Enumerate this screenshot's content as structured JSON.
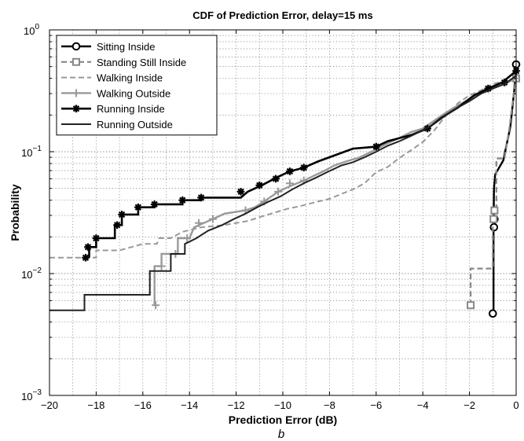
{
  "chart_data": {
    "type": "line",
    "title": "CDF of Prediction Error, delay=15 ms",
    "subtitle": "b",
    "xlabel": "Prediction Error (dB)",
    "ylabel": "Probability",
    "xlim": [
      -20,
      0
    ],
    "ylim": [
      0.001,
      1
    ],
    "y_scale": "log",
    "grid": true,
    "legend_position": "top-left",
    "x_ticks": [
      -20,
      -18,
      -16,
      -14,
      -12,
      -10,
      -8,
      -6,
      -4,
      -2,
      0
    ],
    "x_tick_labels": [
      "−20",
      "−18",
      "−16",
      "−14",
      "−12",
      "−10",
      "−8",
      "−6",
      "−4",
      "−2",
      "0"
    ],
    "y_ticks": [
      0.001,
      0.01,
      0.1,
      1
    ],
    "y_tick_labels": [
      {
        "base": "10",
        "exp": "−3"
      },
      {
        "base": "10",
        "exp": "−2"
      },
      {
        "base": "10",
        "exp": "−1"
      },
      {
        "base": "10",
        "exp": "0"
      }
    ],
    "series": [
      {
        "name": "Sitting Inside",
        "color": "#000000",
        "style": "solid",
        "width": 2.4,
        "marker": "circle",
        "points": [
          [
            -1.0,
            0.0048
          ],
          [
            -0.97,
            0.0048
          ],
          [
            -0.97,
            0.024
          ],
          [
            -0.95,
            0.05
          ],
          [
            -0.9,
            0.065
          ],
          [
            -0.55,
            0.085
          ],
          [
            -0.25,
            0.16
          ],
          [
            -0.08,
            0.32
          ],
          [
            0,
            0.52
          ]
        ],
        "marker_points": [
          [
            -1.0,
            0.0047
          ],
          [
            -0.95,
            0.024
          ],
          [
            -0.93,
            0.028
          ],
          [
            0,
            0.52
          ]
        ]
      },
      {
        "name": "Standing Still Inside",
        "color": "#888888",
        "style": "dashed",
        "width": 2.2,
        "marker": "square",
        "points": [
          [
            -1.95,
            0.0055
          ],
          [
            -1.95,
            0.011
          ],
          [
            -1.0,
            0.011
          ],
          [
            -1.0,
            0.033
          ],
          [
            -0.85,
            0.033
          ],
          [
            -0.85,
            0.088
          ],
          [
            -0.5,
            0.088
          ],
          [
            -0.3,
            0.15
          ],
          [
            -0.1,
            0.3
          ],
          [
            0,
            0.4
          ]
        ],
        "marker_points": [
          [
            -1.95,
            0.0055
          ],
          [
            -0.97,
            0.028
          ],
          [
            -0.93,
            0.033
          ],
          [
            0,
            0.4
          ]
        ]
      },
      {
        "name": "Walking Inside",
        "color": "#999999",
        "style": "dashed",
        "width": 2.0,
        "marker": "none",
        "points": [
          [
            -20,
            0.0135
          ],
          [
            -18,
            0.0135
          ],
          [
            -18,
            0.0155
          ],
          [
            -17,
            0.0155
          ],
          [
            -16,
            0.0175
          ],
          [
            -15.4,
            0.0175
          ],
          [
            -15.3,
            0.0195
          ],
          [
            -14.8,
            0.0195
          ],
          [
            -14.3,
            0.022
          ],
          [
            -13.5,
            0.024
          ],
          [
            -12.5,
            0.025
          ],
          [
            -11.5,
            0.027
          ],
          [
            -11,
            0.029
          ],
          [
            -10.5,
            0.031
          ],
          [
            -9.8,
            0.034
          ],
          [
            -9.2,
            0.036
          ],
          [
            -8.5,
            0.039
          ],
          [
            -8,
            0.041
          ],
          [
            -7.5,
            0.045
          ],
          [
            -7,
            0.049
          ],
          [
            -6.5,
            0.055
          ],
          [
            -6,
            0.068
          ],
          [
            -5.5,
            0.075
          ],
          [
            -5,
            0.089
          ],
          [
            -4.5,
            0.103
          ],
          [
            -4,
            0.12
          ],
          [
            -3.5,
            0.15
          ],
          [
            -3,
            0.2
          ],
          [
            -2.5,
            0.25
          ],
          [
            -2,
            0.29
          ],
          [
            -1.5,
            0.32
          ],
          [
            -1,
            0.36
          ],
          [
            -0.5,
            0.38
          ],
          [
            0,
            0.4
          ]
        ],
        "marker_points": []
      },
      {
        "name": "Walking Outside",
        "color": "#999999",
        "style": "solid",
        "width": 2.4,
        "marker": "plus",
        "points": [
          [
            -15.5,
            0.0055
          ],
          [
            -15.5,
            0.0115
          ],
          [
            -15.2,
            0.0115
          ],
          [
            -15.2,
            0.0145
          ],
          [
            -14.5,
            0.0145
          ],
          [
            -14.5,
            0.0195
          ],
          [
            -14,
            0.0195
          ],
          [
            -13.8,
            0.024
          ],
          [
            -13,
            0.028
          ],
          [
            -12.5,
            0.031
          ],
          [
            -11.6,
            0.033
          ],
          [
            -11.2,
            0.035
          ],
          [
            -10.8,
            0.039
          ],
          [
            -10.2,
            0.047
          ],
          [
            -9.7,
            0.052
          ],
          [
            -9.1,
            0.058
          ],
          [
            -8.7,
            0.063
          ],
          [
            -8.2,
            0.07
          ],
          [
            -7.8,
            0.077
          ],
          [
            -7.3,
            0.083
          ],
          [
            -6.7,
            0.09
          ],
          [
            -6.2,
            0.1
          ],
          [
            -5.6,
            0.115
          ],
          [
            -5,
            0.13
          ],
          [
            -4.5,
            0.145
          ],
          [
            -4,
            0.155
          ],
          [
            -3.5,
            0.18
          ],
          [
            -3,
            0.21
          ],
          [
            -2.5,
            0.24
          ],
          [
            -2,
            0.27
          ],
          [
            -1.5,
            0.3
          ],
          [
            -1,
            0.33
          ],
          [
            -0.5,
            0.36
          ],
          [
            0,
            0.4
          ]
        ],
        "marker_points": [
          [
            -15.45,
            0.0055
          ],
          [
            -15.2,
            0.0115
          ],
          [
            -14.6,
            0.0145
          ],
          [
            -14.1,
            0.0195
          ],
          [
            -13.6,
            0.026
          ],
          [
            -13.0,
            0.028
          ],
          [
            -11.6,
            0.033
          ],
          [
            -10.8,
            0.039
          ],
          [
            -10.2,
            0.047
          ],
          [
            -9.7,
            0.055
          ],
          [
            -9.1,
            0.058
          ],
          [
            -6.0,
            0.11
          ],
          [
            0,
            0.4
          ]
        ]
      },
      {
        "name": "Running Inside",
        "color": "#000000",
        "style": "solid",
        "width": 2.6,
        "marker": "asterisk",
        "points": [
          [
            -18.3,
            0.0135
          ],
          [
            -18.3,
            0.0165
          ],
          [
            -18,
            0.0165
          ],
          [
            -18,
            0.0195
          ],
          [
            -17.2,
            0.0195
          ],
          [
            -17.2,
            0.025
          ],
          [
            -16.9,
            0.025
          ],
          [
            -16.9,
            0.0305
          ],
          [
            -16.2,
            0.0305
          ],
          [
            -16.2,
            0.035
          ],
          [
            -15.5,
            0.035
          ],
          [
            -15.5,
            0.037
          ],
          [
            -14.3,
            0.037
          ],
          [
            -14.3,
            0.04
          ],
          [
            -13.5,
            0.04
          ],
          [
            -13.5,
            0.042
          ],
          [
            -11.8,
            0.042
          ],
          [
            -11.5,
            0.047
          ],
          [
            -10.9,
            0.053
          ],
          [
            -10.3,
            0.061
          ],
          [
            -9.7,
            0.069
          ],
          [
            -9.1,
            0.074
          ],
          [
            -8.5,
            0.083
          ],
          [
            -7.8,
            0.093
          ],
          [
            -7.0,
            0.106
          ],
          [
            -6.0,
            0.11
          ],
          [
            -5.5,
            0.122
          ],
          [
            -4.5,
            0.137
          ],
          [
            -3.8,
            0.155
          ],
          [
            -3.2,
            0.19
          ],
          [
            -2.5,
            0.23
          ],
          [
            -1.8,
            0.29
          ],
          [
            -1.2,
            0.33
          ],
          [
            -0.6,
            0.37
          ],
          [
            0,
            0.46
          ]
        ],
        "marker_points": [
          [
            -18.45,
            0.0135
          ],
          [
            -18.35,
            0.0165
          ],
          [
            -18.0,
            0.0195
          ],
          [
            -17.1,
            0.025
          ],
          [
            -16.9,
            0.0305
          ],
          [
            -16.2,
            0.035
          ],
          [
            -15.5,
            0.037
          ],
          [
            -14.3,
            0.04
          ],
          [
            -13.5,
            0.042
          ],
          [
            -11.8,
            0.047
          ],
          [
            -11.0,
            0.053
          ],
          [
            -10.3,
            0.06
          ],
          [
            -9.7,
            0.069
          ],
          [
            -9.1,
            0.074
          ],
          [
            -6.0,
            0.11
          ],
          [
            -3.8,
            0.155
          ],
          [
            -1.2,
            0.33
          ],
          [
            -0.5,
            0.37
          ],
          [
            0,
            0.46
          ]
        ]
      },
      {
        "name": "Running Outside",
        "color": "#222222",
        "style": "solid",
        "width": 2.0,
        "marker": "none",
        "points": [
          [
            -20,
            0.005
          ],
          [
            -18.5,
            0.005
          ],
          [
            -18.5,
            0.0067
          ],
          [
            -15.7,
            0.0067
          ],
          [
            -15.7,
            0.0105
          ],
          [
            -14.8,
            0.0105
          ],
          [
            -14.8,
            0.0145
          ],
          [
            -14.2,
            0.0145
          ],
          [
            -14.2,
            0.0175
          ],
          [
            -13.7,
            0.0195
          ],
          [
            -13.2,
            0.0225
          ],
          [
            -12.6,
            0.025
          ],
          [
            -12.1,
            0.028
          ],
          [
            -11.6,
            0.031
          ],
          [
            -11.1,
            0.035
          ],
          [
            -10.6,
            0.039
          ],
          [
            -10.1,
            0.043
          ],
          [
            -9.6,
            0.049
          ],
          [
            -9.1,
            0.055
          ],
          [
            -8.6,
            0.061
          ],
          [
            -8.1,
            0.068
          ],
          [
            -7.5,
            0.077
          ],
          [
            -7,
            0.082
          ],
          [
            -6.5,
            0.09
          ],
          [
            -6,
            0.1
          ],
          [
            -5.5,
            0.112
          ],
          [
            -5,
            0.122
          ],
          [
            -4.5,
            0.135
          ],
          [
            -4,
            0.15
          ],
          [
            -3.5,
            0.17
          ],
          [
            -3,
            0.2
          ],
          [
            -2.5,
            0.23
          ],
          [
            -2,
            0.26
          ],
          [
            -1.5,
            0.3
          ],
          [
            -1,
            0.33
          ],
          [
            -0.5,
            0.36
          ],
          [
            0,
            0.42
          ]
        ],
        "marker_points": []
      }
    ]
  }
}
